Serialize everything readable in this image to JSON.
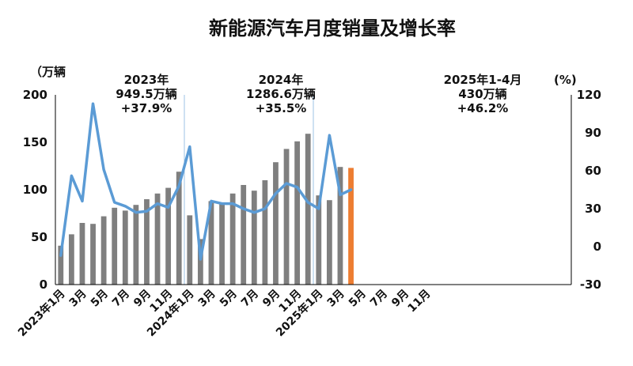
{
  "chart_data": {
    "type": "bar",
    "title": "新能源汽车月度销量及增长率",
    "y_unit_left": "（万辆",
    "y_unit_right": "(%)",
    "ylim_left": [
      0,
      200
    ],
    "ylim_right": [
      -30,
      120
    ],
    "yticks_left": [
      "0",
      "50",
      "100",
      "150",
      "200"
    ],
    "yticks_right": [
      "-30",
      "0",
      "30",
      "60",
      "90",
      "120"
    ],
    "months": 48,
    "x_tick_labels": [
      {
        "i": 0,
        "label": "2023年1月"
      },
      {
        "i": 2,
        "label": "3月"
      },
      {
        "i": 4,
        "label": "5月"
      },
      {
        "i": 6,
        "label": "7月"
      },
      {
        "i": 8,
        "label": "9月"
      },
      {
        "i": 10,
        "label": "11月"
      },
      {
        "i": 12,
        "label": "2024年1月"
      },
      {
        "i": 14,
        "label": "3月"
      },
      {
        "i": 16,
        "label": "5月"
      },
      {
        "i": 18,
        "label": "7月"
      },
      {
        "i": 20,
        "label": "9月"
      },
      {
        "i": 22,
        "label": "11月"
      },
      {
        "i": 24,
        "label": "2025年1月"
      },
      {
        "i": 26,
        "label": "3月"
      },
      {
        "i": 28,
        "label": "5月"
      },
      {
        "i": 30,
        "label": "7月"
      },
      {
        "i": 32,
        "label": "9月"
      },
      {
        "i": 34,
        "label": "11月"
      }
    ],
    "annotations": [
      {
        "lines": [
          "2023年",
          "949.5万辆",
          "+37.9%"
        ]
      },
      {
        "lines": [
          "2024年",
          "1286.6万辆",
          "+35.5%"
        ]
      },
      {
        "lines": [
          "2025年1-4月",
          "430万辆",
          "+46.2%"
        ]
      }
    ],
    "sales_series": {
      "values": [
        41,
        53,
        65,
        64,
        72,
        81,
        78,
        84,
        90,
        96,
        102,
        119,
        73,
        48,
        88,
        85,
        96,
        105,
        99,
        110,
        129,
        143,
        151,
        159,
        94,
        89,
        124,
        123
      ],
      "highlight_index": 27
    },
    "growth_series": {
      "values": [
        -7,
        56,
        36,
        113,
        61,
        35,
        32,
        27,
        28,
        34,
        31,
        48,
        79,
        -10,
        36,
        34,
        34,
        30,
        27,
        30,
        42,
        50,
        47,
        35,
        30,
        88,
        41,
        45
      ]
    },
    "colors": {
      "bar": "#7f7f7f",
      "bar_highlight": "#ed7d31",
      "line": "#5b9bd5",
      "divider": "#9dc3e6",
      "axis": "#000000"
    },
    "grid": false
  }
}
